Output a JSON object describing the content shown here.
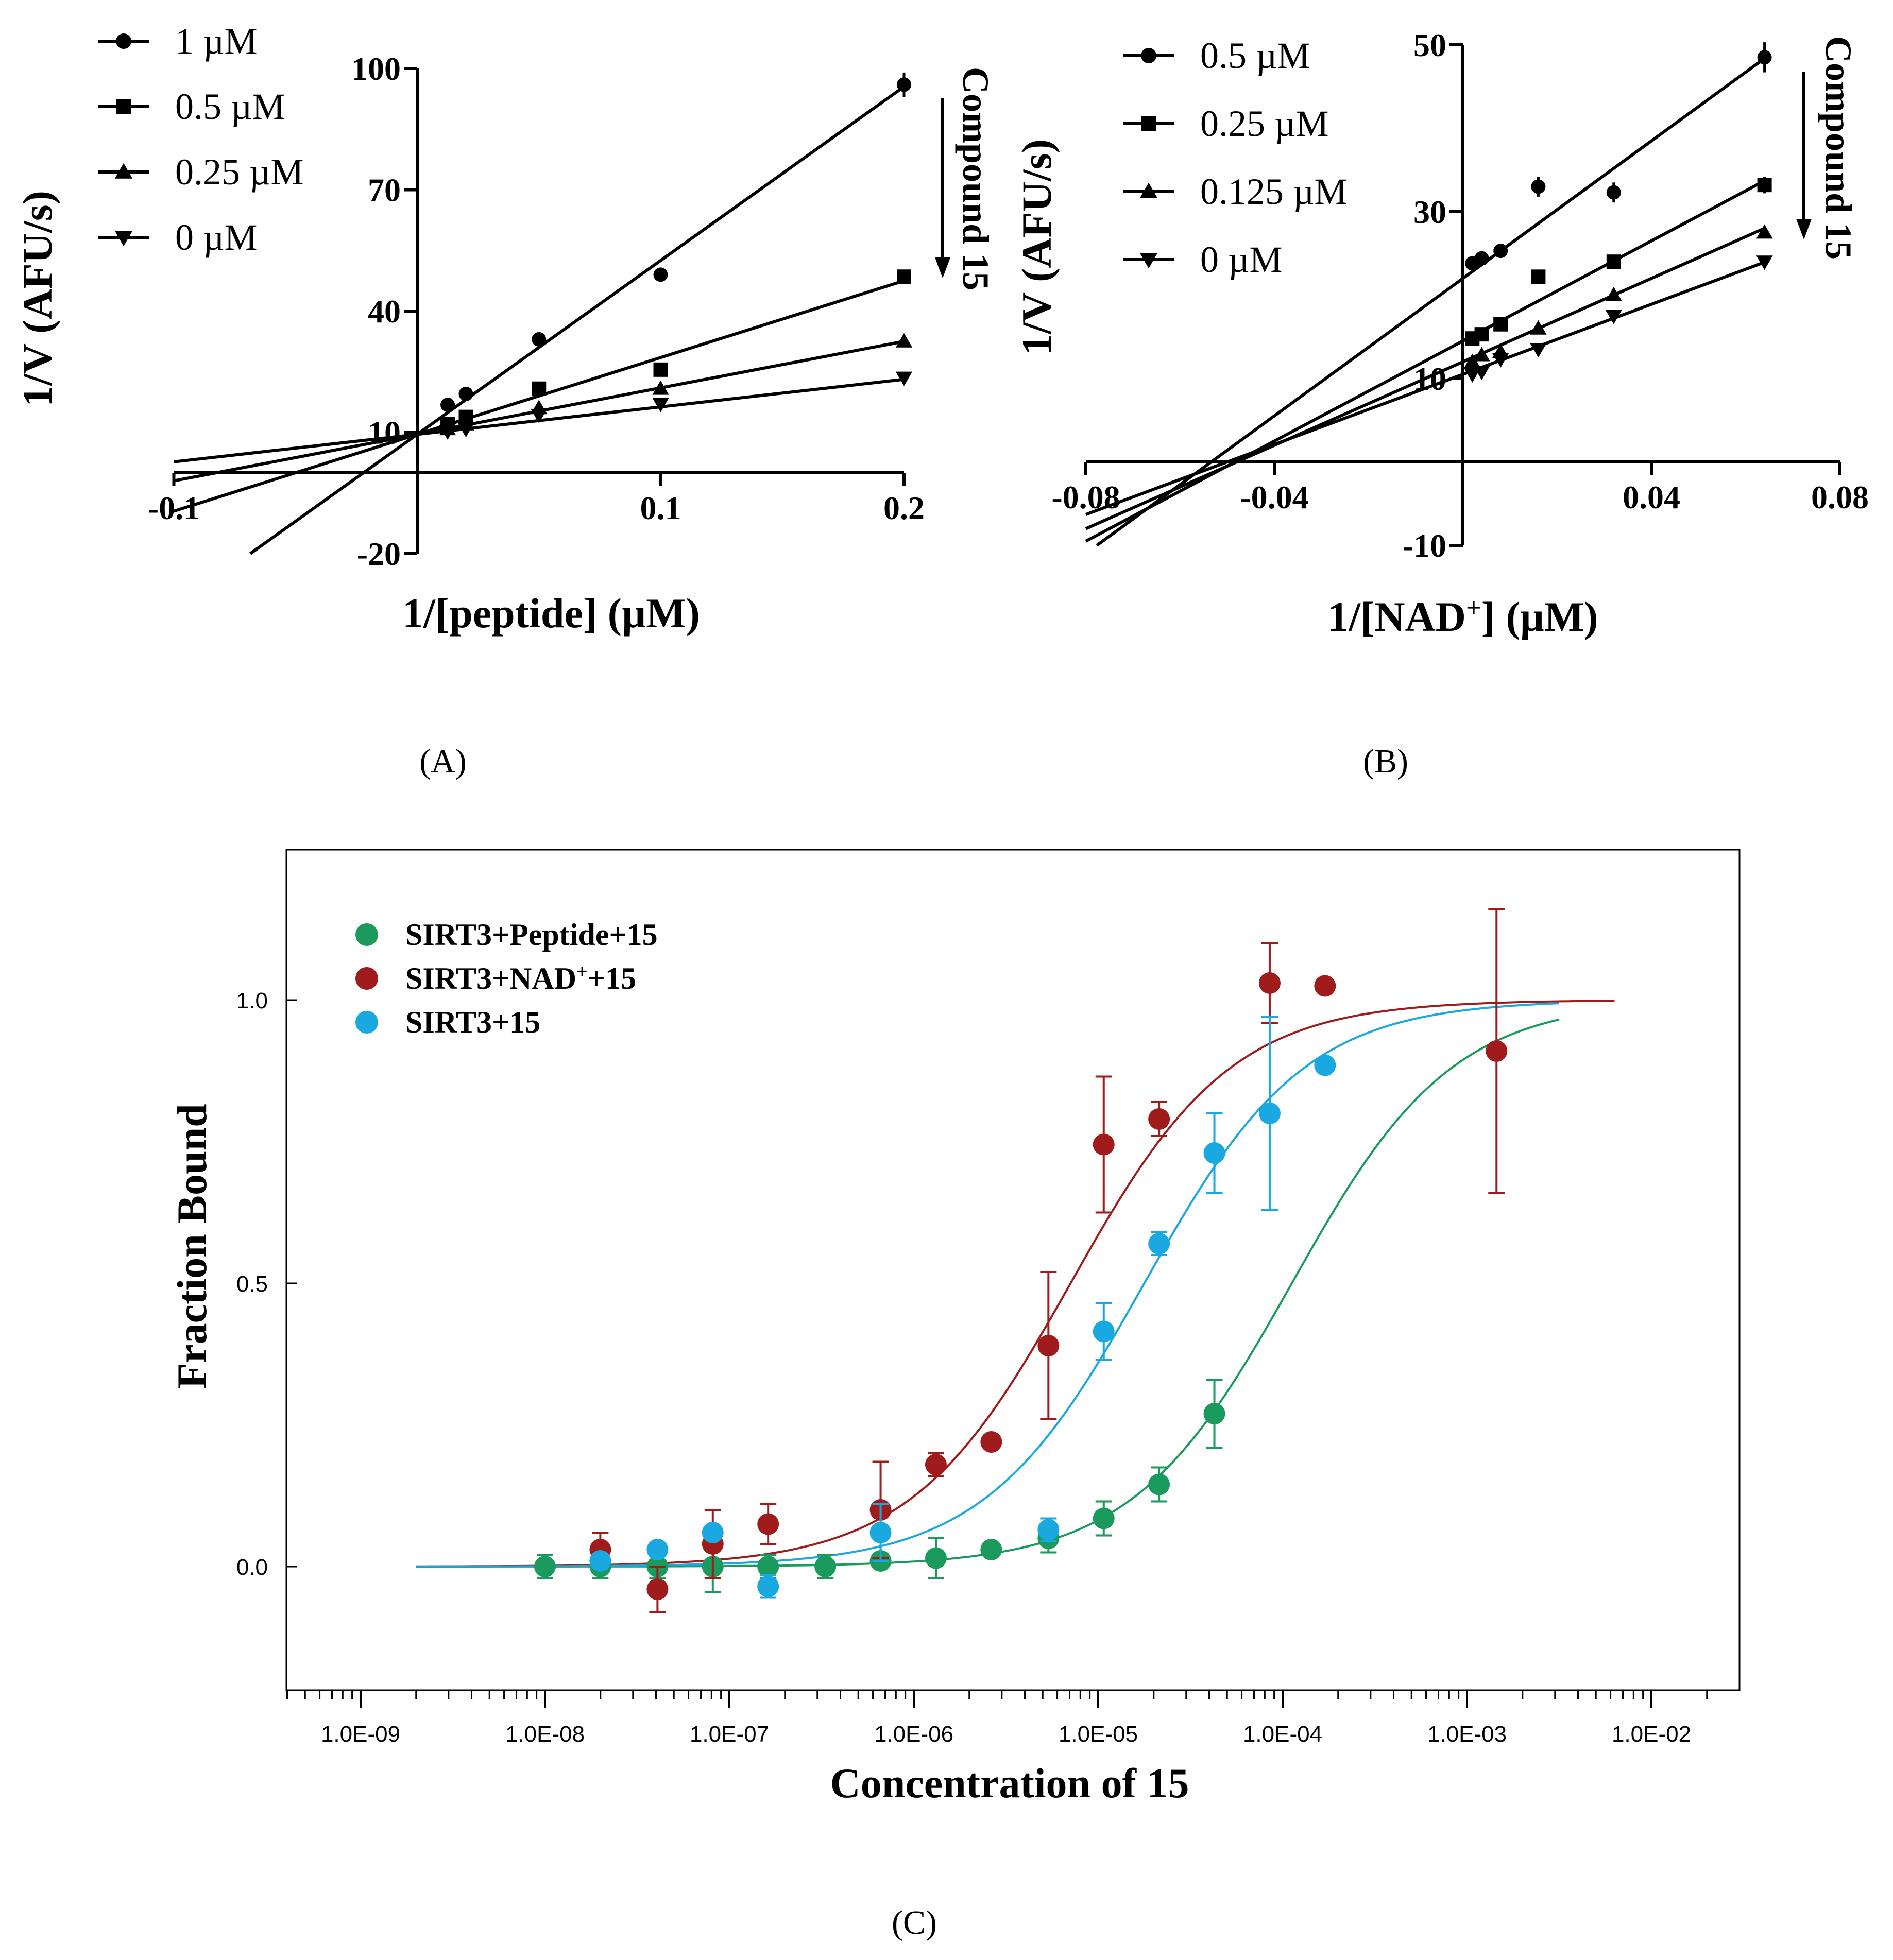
{
  "figure": {
    "panel_labels": [
      "(A)",
      "(B)",
      "(C)"
    ],
    "annotation_text": "Compound 15"
  },
  "chart_data": [
    {
      "id": "A",
      "type": "line",
      "title": "",
      "xlabel": "1/[peptide] (µM)",
      "ylabel": "1/V (AFU/s)",
      "xlim": [
        -0.1,
        0.2
      ],
      "ylim": [
        -20,
        100
      ],
      "xticks": [
        -0.1,
        0.1,
        0.2
      ],
      "xtick_labels": [
        "-0.1",
        "0.1",
        "0.2"
      ],
      "yticks": [
        -20,
        10,
        40,
        70,
        100
      ],
      "ytick_labels": [
        "-20",
        "10",
        "40",
        "70",
        "100"
      ],
      "grid": false,
      "legend": "top-left",
      "annotation": {
        "text": "Compound 15",
        "arrow": "down"
      },
      "series": [
        {
          "name": "1 µM",
          "marker": "circle",
          "fit": {
            "slope": 430,
            "intercept": 9.5
          },
          "x": [
            0.0125,
            0.02,
            0.05,
            0.1,
            0.2
          ],
          "y": [
            16.8,
            19.5,
            33,
            49,
            96
          ],
          "err": [
            0.8,
            0.8,
            0.8,
            1,
            3
          ]
        },
        {
          "name": "0.5 µM",
          "marker": "square",
          "fit": {
            "slope": 190,
            "intercept": 9.5
          },
          "x": [
            0.0125,
            0.02,
            0.05,
            0.1,
            0.2
          ],
          "y": [
            12,
            13.8,
            20.8,
            25.5,
            48.5
          ],
          "err": [
            0.6,
            0.6,
            0.6,
            0.8,
            1.5
          ]
        },
        {
          "name": "0.25 µM",
          "marker": "triangle-up",
          "fit": {
            "slope": 115,
            "intercept": 9.5
          },
          "x": [
            0.0125,
            0.02,
            0.05,
            0.1,
            0.2
          ],
          "y": [
            10.8,
            12,
            16,
            20.8,
            32.5
          ],
          "err": [
            0.5,
            0.5,
            0.5,
            0.6,
            0.8
          ]
        },
        {
          "name": "0 µM",
          "marker": "triangle-down",
          "fit": {
            "slope": 68,
            "intercept": 9.5
          },
          "x": [
            0.0125,
            0.02,
            0.05,
            0.1,
            0.2
          ],
          "y": [
            10.2,
            10.8,
            14.3,
            17,
            23.5
          ],
          "err": [
            0.5,
            0.5,
            0.5,
            0.5,
            0.6
          ]
        }
      ]
    },
    {
      "id": "B",
      "type": "line",
      "title": "",
      "xlabel_main": "1/[NAD",
      "xlabel_sup": "+",
      "xlabel_tail": "] (µM)",
      "ylabel": "1/V (AFU/s)",
      "xlim": [
        -0.08,
        0.08
      ],
      "ylim": [
        -10,
        50
      ],
      "xticks": [
        -0.08,
        -0.04,
        0.04,
        0.08
      ],
      "xtick_labels": [
        "-0.08",
        "-0.04",
        "0.04",
        "0.08"
      ],
      "yticks": [
        -10,
        10,
        30,
        50
      ],
      "ytick_labels": [
        "-10",
        "10",
        "30",
        "50"
      ],
      "grid": false,
      "legend": "top-left",
      "annotation": {
        "text": "Compound 15",
        "arrow": "down"
      },
      "series": [
        {
          "name": "0.5 µM",
          "marker": "circle",
          "fit": {
            "slope": 412,
            "intercept": 22
          },
          "x": [
            0.002,
            0.004,
            0.008,
            0.016,
            0.032,
            0.064
          ],
          "y": [
            23.8,
            24.4,
            25.3,
            33,
            32.3,
            48.5
          ],
          "err": [
            0.5,
            0.5,
            0.5,
            1.2,
            1.2,
            1.8
          ]
        },
        {
          "name": "0.25 µM",
          "marker": "square",
          "fit": {
            "slope": 300,
            "intercept": 14.5
          },
          "x": [
            0.002,
            0.004,
            0.008,
            0.016,
            0.032,
            0.064
          ],
          "y": [
            14.8,
            15.3,
            16.5,
            22.2,
            24,
            33.2
          ],
          "err": [
            0.5,
            0.5,
            0.5,
            0.6,
            0.6,
            1
          ]
        },
        {
          "name": "0.125 µM",
          "marker": "triangle-up",
          "fit": {
            "slope": 250,
            "intercept": 12
          },
          "x": [
            0.002,
            0.004,
            0.008,
            0.016,
            0.032,
            0.064
          ],
          "y": [
            12,
            12.8,
            13.2,
            16,
            20,
            27.5
          ],
          "err": [
            0.5,
            0.5,
            0.5,
            0.5,
            0.5,
            0.6
          ]
        },
        {
          "name": "0 µM",
          "marker": "triangle-down",
          "fit": {
            "slope": 210,
            "intercept": 10.5
          },
          "x": [
            0.002,
            0.004,
            0.008,
            0.016,
            0.032,
            0.064
          ],
          "y": [
            10.5,
            10.8,
            12.3,
            13.5,
            17.5,
            24
          ],
          "err": [
            0.5,
            0.5,
            0.5,
            0.5,
            0.5,
            0.6
          ]
        }
      ]
    },
    {
      "id": "C",
      "type": "scatter",
      "title": "",
      "xlabel": "Concentration of 15",
      "ylabel": "Fraction Bound",
      "xscale": "log",
      "xlim_log10": [
        -9.4,
        -1.65
      ],
      "ylim": [
        -0.2,
        1.25
      ],
      "xticks_log10": [
        -9,
        -8,
        -7,
        -6,
        -5,
        -4,
        -3,
        -2
      ],
      "xtick_labels": [
        "1.0E-09",
        "1.0E-08",
        "1.0E-07",
        "1.0E-06",
        "1.0E-05",
        "1.0E-04",
        "1.0E-03",
        "1.0E-02"
      ],
      "yticks": [
        0.0,
        0.5,
        1.0
      ],
      "ytick_labels": [
        "0.0",
        "0.5",
        "1.0"
      ],
      "grid": false,
      "legend": "top-left",
      "series": [
        {
          "name_main": "SIRT3+Peptide+15",
          "name_sup": "",
          "name_tail": "",
          "color": "#1a9a5c",
          "fit": {
            "log10_kd": -3.95,
            "hill": 1,
            "from": -8.7,
            "to": -2.5
          },
          "x_log10": [
            -8.0,
            -7.7,
            -7.39,
            -7.09,
            -6.79,
            -6.48,
            -6.18,
            -5.88,
            -5.58,
            -5.27,
            -4.97,
            -4.67,
            -4.37
          ],
          "y": [
            0.0,
            0.0,
            0.0,
            0.0,
            0.0,
            0.0,
            0.01,
            0.015,
            0.03,
            0.05,
            0.085,
            0.145,
            0.27
          ],
          "err": [
            0.02,
            0.02,
            0.02,
            0.045,
            0.02,
            0.02,
            0.01,
            0.035,
            0.01,
            0.025,
            0.03,
            0.03,
            0.06
          ]
        },
        {
          "name_main": "SIRT3+NAD",
          "name_sup": "+",
          "name_tail": "+15",
          "color": "#a01b1b",
          "fit": {
            "log10_kd": -5.15,
            "hill": 1,
            "from": -8.7,
            "to": -2.2
          },
          "x_log10": [
            -7.7,
            -7.39,
            -7.09,
            -6.79,
            -6.18,
            -5.88,
            -5.58,
            -5.27,
            -4.97,
            -4.67,
            -4.07,
            -3.77,
            -2.84
          ],
          "y": [
            0.03,
            -0.04,
            0.04,
            0.075,
            0.1,
            0.18,
            0.22,
            0.39,
            0.745,
            0.79,
            1.03,
            1.025,
            0.91
          ],
          "err": [
            0.03,
            0.04,
            0.06,
            0.035,
            0.085,
            0.02,
            0.0,
            0.13,
            0.12,
            0.03,
            0.07,
            0.0,
            0.25
          ]
        },
        {
          "name_main": "SIRT3+15",
          "name_sup": "",
          "name_tail": "",
          "color": "#19a8e0",
          "fit": {
            "log10_kd": -4.75,
            "hill": 1,
            "from": -8.7,
            "to": -2.5
          },
          "x_log10": [
            -7.7,
            -7.39,
            -7.09,
            -6.79,
            -6.18,
            -5.27,
            -4.97,
            -4.67,
            -4.37,
            -4.07,
            -3.77
          ],
          "y": [
            0.01,
            0.03,
            0.06,
            -0.035,
            0.06,
            0.065,
            0.415,
            0.57,
            0.73,
            0.8,
            0.885
          ],
          "err": [
            0.01,
            0.01,
            0.01,
            0.02,
            0.05,
            0.02,
            0.05,
            0.02,
            0.07,
            0.17,
            0.01
          ]
        }
      ]
    }
  ]
}
